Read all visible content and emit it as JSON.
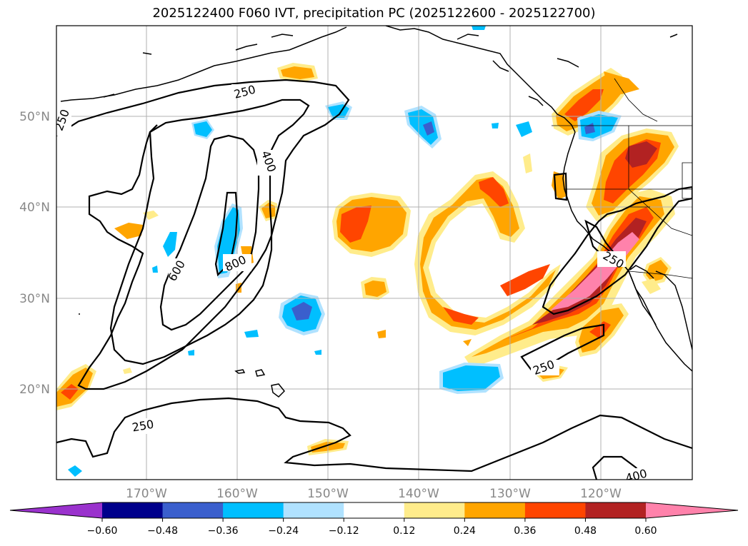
{
  "title": "2025122400 F060 IVT, precipitation PC (2025122600 - 2025122700)",
  "map": {
    "lat_labels": [
      "50°N",
      "40°N",
      "30°N",
      "20°N"
    ],
    "lon_labels": [
      "170°W",
      "160°W",
      "150°W",
      "140°W",
      "130°W",
      "120°W"
    ],
    "ivt_contour_levels": [
      250,
      400,
      600,
      800
    ],
    "contour_labels": [
      "250",
      "250",
      "400",
      "600",
      "800",
      "250",
      "250",
      "250",
      "400"
    ]
  },
  "colorbar": {
    "ticks": [
      "−0.60",
      "−0.48",
      "−0.36",
      "−0.24",
      "−0.12",
      "0.12",
      "0.24",
      "0.36",
      "0.48",
      "0.60"
    ],
    "colors": [
      "#9a32cd",
      "#00008b",
      "#3a5fcd",
      "#00bfff",
      "#b0e2ff",
      "#ffffff",
      "#ffec8b",
      "#ffa500",
      "#ff4500",
      "#b22222",
      "#ff82ab"
    ]
  },
  "colors": {
    "pos_1": "#ffec8b",
    "pos_2": "#ffa500",
    "pos_3": "#ff4500",
    "pos_4": "#b22222",
    "pos_5": "#ff82ab",
    "neg_1": "#b0e2ff",
    "neg_2": "#00bfff",
    "neg_3": "#3a5fcd",
    "neg_4": "#00008b",
    "neg_5": "#9a32cd"
  }
}
